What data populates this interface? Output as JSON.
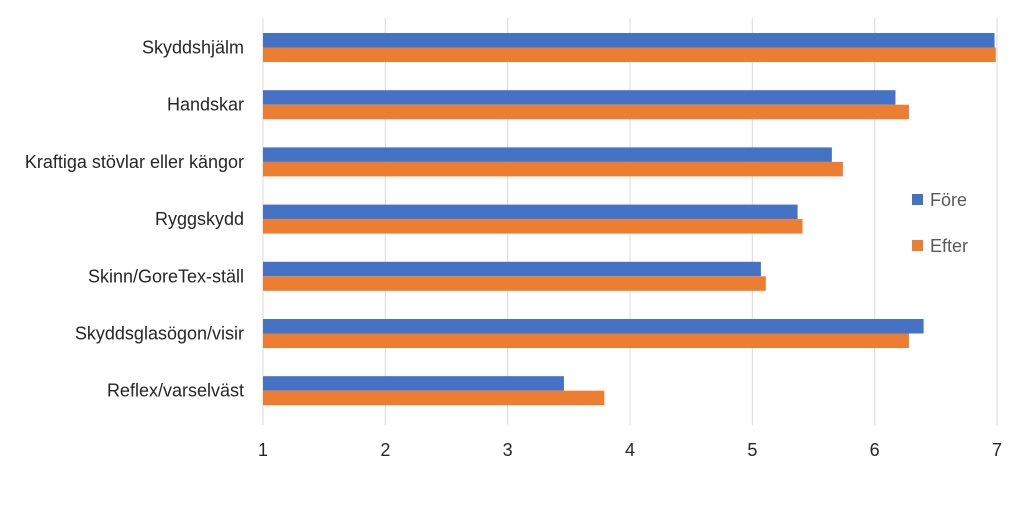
{
  "chart_data": {
    "type": "bar",
    "orientation": "horizontal",
    "title": "",
    "xlabel": "",
    "ylabel": "",
    "xlim": [
      1,
      7
    ],
    "ticks": [
      "1",
      "2",
      "3",
      "4",
      "5",
      "6",
      "7"
    ],
    "tick_values": [
      1,
      2,
      3,
      4,
      5,
      6,
      7
    ],
    "grid": true,
    "legend_position": "right",
    "categories": [
      "Skyddshjälm",
      "Handskar",
      "Kraftiga stövlar eller kängor",
      "Ryggskydd",
      "Skinn/GoreTex-ställ",
      "Skyddsglasögon/visir",
      "Reflex/varselväst"
    ],
    "series": [
      {
        "name": "Före",
        "color": "#4472C4",
        "values": [
          6.98,
          6.17,
          5.65,
          5.37,
          5.07,
          6.4,
          3.46
        ]
      },
      {
        "name": "Efter",
        "color": "#ED7D31",
        "values": [
          6.99,
          6.28,
          5.74,
          5.41,
          5.11,
          6.28,
          3.79
        ]
      }
    ]
  }
}
